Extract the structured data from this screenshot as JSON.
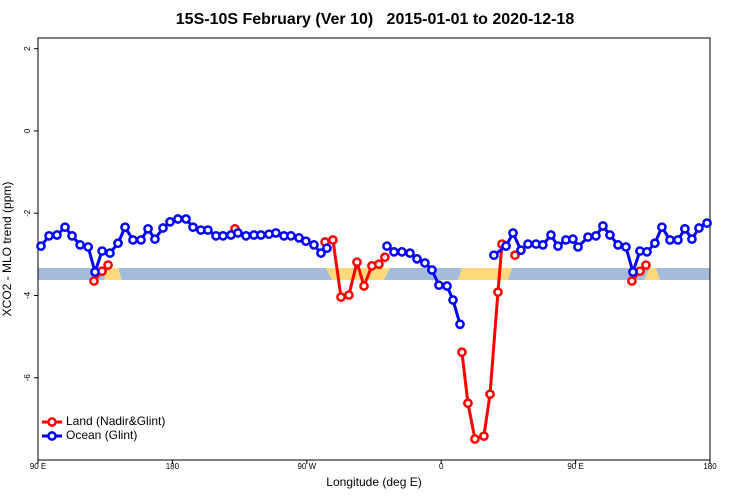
{
  "chart_data": {
    "type": "line",
    "title": "15S-10S February (Ver 10)   2015-01-01 to 2020-12-18",
    "xlabel": "Longitude (deg E)",
    "ylabel": "XCO2 - MLO trend (ppm)",
    "xlim": [
      90,
      540
    ],
    "xticks": [
      {
        "value": 90,
        "label": "90 E"
      },
      180,
      {
        "value": 270,
        "label": "90 W"
      },
      {
        "value": 360,
        "label": "0"
      },
      {
        "value": 450,
        "label": "90 E"
      },
      {
        "value": 540,
        "label": "180"
      }
    ],
    "ylim": [
      -8.0,
      2.26
    ],
    "yticks": [
      2,
      0,
      -2,
      -4,
      -6
    ],
    "legend": "bottom-left",
    "series": [
      {
        "name": "Land (Nadir&Glint)",
        "color": "#ff0000",
        "x": [
          127.5,
          132.9,
          136.9,
          null,
          221.9,
          null,
          282.2,
          287.5,
          292.9,
          298.2,
          303.6,
          308.3,
          313.6,
          318.3,
          322.3,
          null,
          373.9,
          377.9,
          382.6,
          388.6,
          392.7,
          398.0,
          400.7,
          null,
          409.4,
          null,
          487.7,
          493.1,
          497.1
        ],
        "values": [
          -3.65,
          -3.41,
          -3.26,
          null,
          -2.38,
          null,
          -2.7,
          -2.65,
          -4.04,
          -3.99,
          -3.19,
          -3.77,
          -3.28,
          -3.24,
          -3.07,
          null,
          -5.38,
          -6.62,
          -7.49,
          -7.42,
          -6.4,
          -3.92,
          -2.75,
          null,
          -3.02,
          null,
          -3.65,
          -3.41,
          -3.26
        ]
      },
      {
        "name": "Ocean (Glint)",
        "color": "#0000ff",
        "x": [
          92.0,
          97.4,
          102.7,
          108.1,
          112.8,
          118.2,
          123.6,
          128.2,
          132.9,
          138.2,
          143.6,
          148.3,
          153.6,
          159.0,
          163.7,
          168.3,
          173.7,
          178.4,
          183.7,
          189.1,
          193.8,
          199.1,
          203.8,
          209.2,
          213.9,
          219.2,
          223.9,
          229.3,
          234.6,
          239.3,
          244.7,
          249.3,
          254.7,
          259.4,
          264.8,
          269.4,
          274.8,
          279.5,
          283.5,
          null,
          323.7,
          328.4,
          333.7,
          339.1,
          343.8,
          349.1,
          353.8,
          358.5,
          363.9,
          367.9,
          372.6,
          null,
          395.3,
          403.4,
          408.1,
          413.4,
          418.1,
          423.5,
          428.1,
          433.5,
          438.2,
          443.5,
          448.2,
          451.6,
          458.3,
          463.6,
          468.3,
          473.0,
          478.4,
          483.7,
          488.4,
          493.1,
          497.8,
          503.1,
          507.8,
          513.2,
          518.5,
          523.2,
          527.9,
          532.6,
          538.0
        ],
        "values": [
          -2.8,
          -2.55,
          -2.53,
          -2.34,
          -2.55,
          -2.77,
          -2.82,
          -3.43,
          -2.92,
          -2.97,
          -2.73,
          -2.34,
          -2.65,
          -2.65,
          -2.38,
          -2.63,
          -2.36,
          -2.21,
          -2.14,
          -2.14,
          -2.34,
          -2.41,
          -2.41,
          -2.55,
          -2.55,
          -2.53,
          -2.48,
          -2.55,
          -2.53,
          -2.53,
          -2.51,
          -2.48,
          -2.55,
          -2.55,
          -2.6,
          -2.68,
          -2.77,
          -2.97,
          -2.85,
          null,
          -2.8,
          -2.94,
          -2.94,
          -2.97,
          -3.11,
          -3.21,
          -3.38,
          -3.75,
          -3.77,
          -4.11,
          -4.7,
          null,
          -3.02,
          -2.8,
          -2.48,
          -2.9,
          -2.75,
          -2.75,
          -2.77,
          -2.53,
          -2.8,
          -2.65,
          -2.63,
          -2.82,
          -2.58,
          -2.55,
          -2.31,
          -2.53,
          -2.77,
          -2.82,
          -3.43,
          -2.92,
          -2.94,
          -2.73,
          -2.34,
          -2.65,
          -2.65,
          -2.38,
          -2.63,
          -2.36,
          -2.24
        ]
      }
    ]
  }
}
